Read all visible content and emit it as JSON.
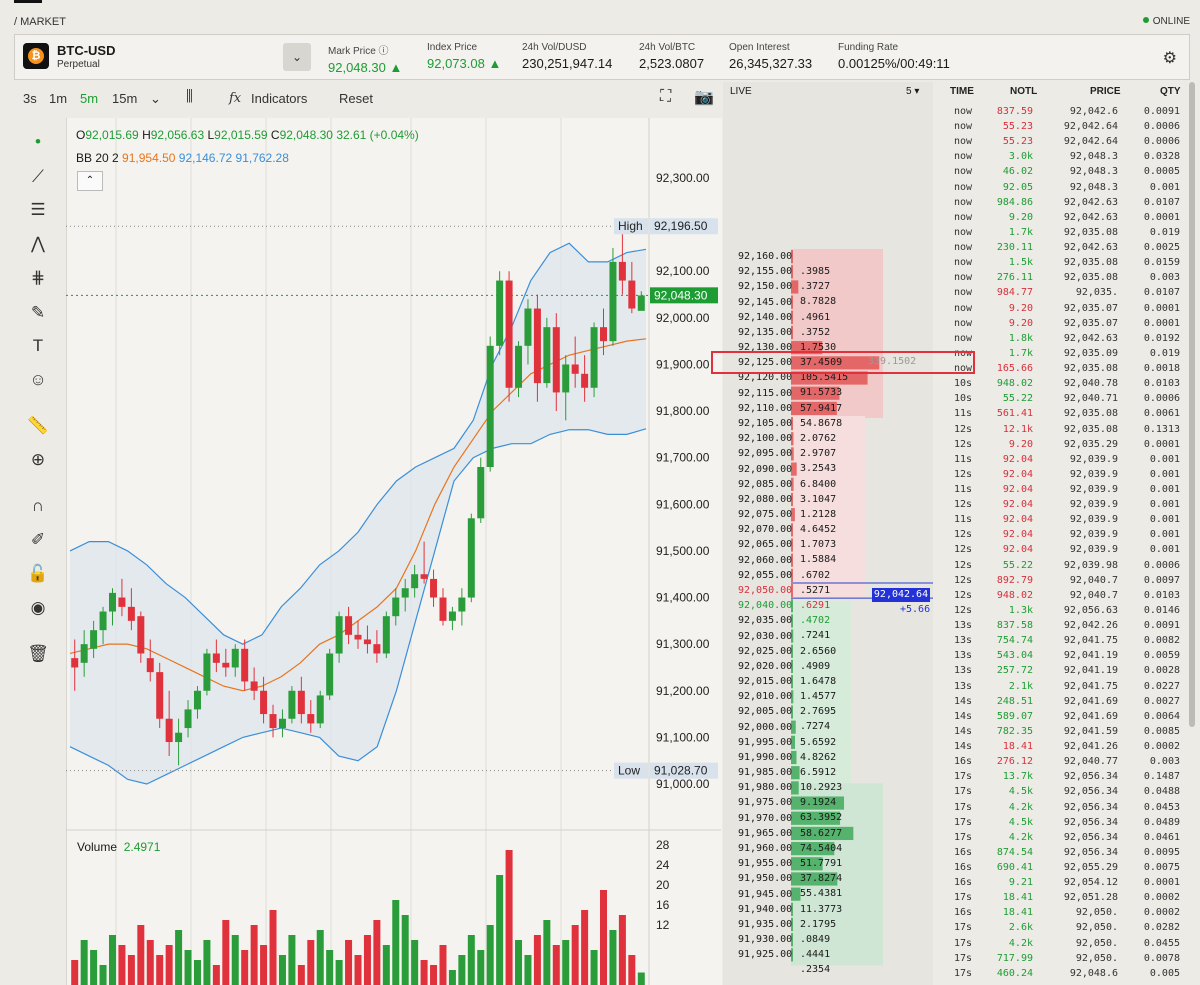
{
  "breadcrumb": "/ MARKET",
  "status": "ONLINE",
  "market": {
    "symbol": "BTC-USD",
    "type": "Perpetual",
    "logo_icon": "bitcoin-icon"
  },
  "stats": [
    {
      "label": "Mark Price ⓘ",
      "value": "92,048.30 ▲",
      "color": "#1e9c34"
    },
    {
      "label": "Index Price",
      "value": "92,073.08 ▲",
      "color": "#1e9c34"
    },
    {
      "label": "24h Vol/DUSD",
      "value": "230,251,947.14",
      "color": "#1a1a1a"
    },
    {
      "label": "24h Vol/BTC",
      "value": "2,523.0807",
      "color": "#1a1a1a"
    },
    {
      "label": "Open Interest",
      "value": "26,345,327.33",
      "color": "#1a1a1a"
    },
    {
      "label": "Funding Rate",
      "value": "0.00125%/00:49:11",
      "color": "#1a1a1a"
    }
  ],
  "toolbar": {
    "intervals": [
      "3s",
      "1m",
      "5m",
      "15m"
    ],
    "active_interval": "5m",
    "indicators": "Indicators",
    "reset": "Reset"
  },
  "chart": {
    "ohlc_o": "92,015.69",
    "ohlc_h": "92,056.63",
    "ohlc_l": "92,015.59",
    "ohlc_c": "92,048.30",
    "ohlc_chg": "32.61 (+0.04%)",
    "bb_label": "BB 20 2",
    "bb_mid": "91,954.50",
    "bb_up": "92,146.72",
    "bb_low": "91,762.28",
    "high_label": "High",
    "high_value": "92,196.50",
    "low_label": "Low",
    "low_value": "91,028.70",
    "current_price": "92,048.30",
    "y_ticks": [
      "92,300.00",
      "92,100.00",
      "92,000.00",
      "91,900.00",
      "91,800.00",
      "91,700.00",
      "91,600.00",
      "91,500.00",
      "91,400.00",
      "91,300.00",
      "91,200.00",
      "91,100.00",
      "91,000.00"
    ],
    "volume_label": "Volume",
    "volume_value": "2.4971",
    "vol_ticks": [
      "28",
      "24",
      "20",
      "16",
      "12"
    ]
  },
  "chart_data": {
    "type": "candlestick",
    "price_ylim": [
      91000,
      92300
    ],
    "candles": [
      [
        91270,
        91310,
        91200,
        91250
      ],
      [
        91260,
        91330,
        91230,
        91300
      ],
      [
        91290,
        91350,
        91270,
        91330
      ],
      [
        91330,
        91380,
        91300,
        91370
      ],
      [
        91370,
        91420,
        91340,
        91410
      ],
      [
        91400,
        91440,
        91360,
        91380
      ],
      [
        91380,
        91420,
        91330,
        91350
      ],
      [
        91360,
        91370,
        91260,
        91280
      ],
      [
        91270,
        91310,
        91220,
        91240
      ],
      [
        91240,
        91260,
        91120,
        91140
      ],
      [
        91140,
        91200,
        91060,
        91090
      ],
      [
        91090,
        91140,
        91040,
        91110
      ],
      [
        91120,
        91180,
        91100,
        91160
      ],
      [
        91160,
        91210,
        91140,
        91200
      ],
      [
        91200,
        91290,
        91190,
        91280
      ],
      [
        91280,
        91310,
        91240,
        91260
      ],
      [
        91260,
        91290,
        91230,
        91250
      ],
      [
        91250,
        91300,
        91230,
        91290
      ],
      [
        91290,
        91310,
        91200,
        91220
      ],
      [
        91220,
        91250,
        91180,
        91200
      ],
      [
        91200,
        91230,
        91130,
        91150
      ],
      [
        91150,
        91170,
        91100,
        91120
      ],
      [
        91120,
        91160,
        91100,
        91140
      ],
      [
        91140,
        91210,
        91130,
        91200
      ],
      [
        91200,
        91230,
        91130,
        91150
      ],
      [
        91150,
        91180,
        91110,
        91130
      ],
      [
        91130,
        91200,
        91120,
        91190
      ],
      [
        91190,
        91290,
        91180,
        91280
      ],
      [
        91280,
        91370,
        91260,
        91360
      ],
      [
        91360,
        91380,
        91300,
        91320
      ],
      [
        91320,
        91350,
        91290,
        91310
      ],
      [
        91310,
        91340,
        91280,
        91300
      ],
      [
        91300,
        91330,
        91260,
        91280
      ],
      [
        91280,
        91370,
        91270,
        91360
      ],
      [
        91360,
        91420,
        91340,
        91400
      ],
      [
        91400,
        91440,
        91370,
        91420
      ],
      [
        91420,
        91470,
        91400,
        91450
      ],
      [
        91450,
        91520,
        91430,
        91440
      ],
      [
        91440,
        91460,
        91380,
        91400
      ],
      [
        91400,
        91420,
        91340,
        91350
      ],
      [
        91350,
        91380,
        91330,
        91370
      ],
      [
        91370,
        91420,
        91340,
        91400
      ],
      [
        91400,
        91580,
        91390,
        91570
      ],
      [
        91570,
        91700,
        91560,
        91680
      ],
      [
        91680,
        91960,
        91670,
        91940
      ],
      [
        91940,
        92100,
        91920,
        92080
      ],
      [
        92080,
        92100,
        91820,
        91850
      ],
      [
        91850,
        91950,
        91830,
        91940
      ],
      [
        91940,
        92040,
        91900,
        92020
      ],
      [
        92020,
        92050,
        91820,
        91860
      ],
      [
        91860,
        92000,
        91850,
        91980
      ],
      [
        91980,
        92010,
        91800,
        91840
      ],
      [
        91840,
        91920,
        91780,
        91900
      ],
      [
        91900,
        91960,
        91850,
        91880
      ],
      [
        91880,
        91920,
        91820,
        91850
      ],
      [
        91850,
        91990,
        91830,
        91980
      ],
      [
        91980,
        92020,
        91920,
        91950
      ],
      [
        91950,
        92150,
        91940,
        92120
      ],
      [
        92120,
        92196,
        92050,
        92080
      ],
      [
        92080,
        92120,
        92010,
        92020
      ],
      [
        92015,
        92057,
        92016,
        92048
      ]
    ],
    "bb_upper": [
      91500,
      91520,
      91520,
      91500,
      91470,
      91430,
      91400,
      91360,
      91320,
      91300,
      91320,
      91380,
      91420,
      91470,
      91500,
      91540,
      91600,
      91650,
      91680,
      91700,
      91720,
      91780,
      91900,
      91980,
      92080,
      92140,
      92160,
      92120,
      92120,
      92140,
      92147
    ],
    "bb_middle": [
      91280,
      91290,
      91300,
      91300,
      91290,
      91270,
      91250,
      91230,
      91210,
      91200,
      91210,
      91230,
      91260,
      91300,
      91320,
      91350,
      91380,
      91420,
      91500,
      91600,
      91680,
      91740,
      91800,
      91840,
      91880,
      91900,
      91920,
      91930,
      91940,
      91950,
      91955
    ],
    "bb_lower": [
      91080,
      91060,
      91040,
      91010,
      91000,
      91020,
      91040,
      91060,
      91080,
      91100,
      91110,
      91120,
      91110,
      91100,
      91060,
      91050,
      91080,
      91200,
      91350,
      91500,
      91650,
      91700,
      91720,
      91730,
      91730,
      91750,
      91760,
      91760,
      91750,
      91750,
      91762
    ],
    "volume": [
      5,
      9,
      7,
      4,
      10,
      8,
      6,
      12,
      9,
      6,
      8,
      11,
      7,
      5,
      9,
      4,
      13,
      10,
      7,
      12,
      8,
      15,
      6,
      10,
      4,
      9,
      11,
      7,
      5,
      9,
      6,
      10,
      13,
      8,
      17,
      14,
      9,
      5,
      4,
      8,
      3,
      6,
      10,
      7,
      12,
      22,
      27,
      9,
      6,
      10,
      13,
      8,
      9,
      12,
      15,
      7,
      19,
      11,
      14,
      6,
      2.4971
    ],
    "volume_ylim": [
      0,
      28
    ]
  },
  "orderbook": {
    "header": "LIVE",
    "depth": "5 ▾",
    "asks": [
      [
        "92,160.00",
        ".3985"
      ],
      [
        "92,155.00",
        ".3727"
      ],
      [
        "92,150.00",
        "8.7828"
      ],
      [
        "92,145.00",
        ".4961"
      ],
      [
        "92,140.00",
        ".3752"
      ],
      [
        "92,135.00",
        "1.7530"
      ],
      [
        "92,130.00",
        "37.4509"
      ],
      [
        "92,125.00",
        "105.5415"
      ],
      [
        "92,120.00",
        "91.5733"
      ],
      [
        "92,115.00",
        "57.9417"
      ],
      [
        "92,110.00",
        "54.8678"
      ],
      [
        "92,105.00",
        "2.0762"
      ],
      [
        "92,100.00",
        "2.9707"
      ],
      [
        "92,095.00",
        "3.2543"
      ],
      [
        "92,090.00",
        "6.8400"
      ],
      [
        "92,085.00",
        "3.1047"
      ],
      [
        "92,080.00",
        "1.2128"
      ],
      [
        "92,075.00",
        "4.6452"
      ],
      [
        "92,070.00",
        "1.7073"
      ],
      [
        "92,065.00",
        "1.5884"
      ],
      [
        "92,060.00",
        ".6702"
      ],
      [
        "92,055.00",
        ".5271"
      ],
      [
        "92,050.00",
        ".6291"
      ]
    ],
    "ask_depth": "339.1502",
    "bids": [
      [
        "92,040.00",
        ".4702"
      ],
      [
        "92,035.00",
        ".7241"
      ],
      [
        "92,030.00",
        "2.6560"
      ],
      [
        "92,025.00",
        ".4909"
      ],
      [
        "92,020.00",
        "1.6478"
      ],
      [
        "92,015.00",
        "1.4577"
      ],
      [
        "92,010.00",
        "2.7695"
      ],
      [
        "92,005.00",
        ".7274"
      ],
      [
        "92,000.00",
        "5.6592"
      ],
      [
        "91,995.00",
        "4.8262"
      ],
      [
        "91,990.00",
        "6.5912"
      ],
      [
        "91,985.00",
        "10.2923"
      ],
      [
        "91,980.00",
        "9.1924"
      ],
      [
        "91,975.00",
        "63.3952"
      ],
      [
        "91,970.00",
        "58.6277"
      ],
      [
        "91,965.00",
        "74.5404"
      ],
      [
        "91,960.00",
        "51.7791"
      ],
      [
        "91,955.00",
        "37.8274"
      ],
      [
        "91,950.00",
        "55.4381"
      ],
      [
        "91,945.00",
        "11.3773"
      ],
      [
        "91,940.00",
        "2.1795"
      ],
      [
        "91,935.00",
        ".0849"
      ],
      [
        "91,930.00",
        ".4441"
      ],
      [
        "91,925.00",
        ".2354"
      ]
    ],
    "last_price": "92,042.64",
    "last_change": "+5.66"
  },
  "trades": {
    "headers": [
      "TIME",
      "NOTL",
      "PRICE",
      "QTY"
    ],
    "rows": [
      [
        "now",
        "837.59",
        "92,042.6",
        "0.0091",
        "r"
      ],
      [
        "now",
        "55.23",
        "92,042.64",
        "0.0006",
        "r"
      ],
      [
        "now",
        "55.23",
        "92,042.64",
        "0.0006",
        "r"
      ],
      [
        "now",
        "3.0k",
        "92,048.3",
        "0.0328",
        "g"
      ],
      [
        "now",
        "46.02",
        "92,048.3",
        "0.0005",
        "g"
      ],
      [
        "now",
        "92.05",
        "92,048.3",
        "0.001",
        "g"
      ],
      [
        "now",
        "984.86",
        "92,042.63",
        "0.0107",
        "g"
      ],
      [
        "now",
        "9.20",
        "92,042.63",
        "0.0001",
        "g"
      ],
      [
        "now",
        "1.7k",
        "92,035.08",
        "0.019",
        "g"
      ],
      [
        "now",
        "230.11",
        "92,042.63",
        "0.0025",
        "g"
      ],
      [
        "now",
        "1.5k",
        "92,035.08",
        "0.0159",
        "g"
      ],
      [
        "now",
        "276.11",
        "92,035.08",
        "0.003",
        "g"
      ],
      [
        "now",
        "984.77",
        "92,035.",
        "0.0107",
        "r"
      ],
      [
        "now",
        "9.20",
        "92,035.07",
        "0.0001",
        "r"
      ],
      [
        "now",
        "9.20",
        "92,035.07",
        "0.0001",
        "r"
      ],
      [
        "now",
        "1.8k",
        "92,042.63",
        "0.0192",
        "g"
      ],
      [
        "now",
        "1.7k",
        "92,035.09",
        "0.019",
        "g"
      ],
      [
        "now",
        "165.66",
        "92,035.08",
        "0.0018",
        "r"
      ],
      [
        "10s",
        "948.02",
        "92,040.78",
        "0.0103",
        "g"
      ],
      [
        "10s",
        "55.22",
        "92,040.71",
        "0.0006",
        "g"
      ],
      [
        "11s",
        "561.41",
        "92,035.08",
        "0.0061",
        "r"
      ],
      [
        "12s",
        "12.1k",
        "92,035.08",
        "0.1313",
        "r"
      ],
      [
        "12s",
        "9.20",
        "92,035.29",
        "0.0001",
        "r"
      ],
      [
        "11s",
        "92.04",
        "92,039.9",
        "0.001",
        "r"
      ],
      [
        "12s",
        "92.04",
        "92,039.9",
        "0.001",
        "r"
      ],
      [
        "11s",
        "92.04",
        "92,039.9",
        "0.001",
        "r"
      ],
      [
        "12s",
        "92.04",
        "92,039.9",
        "0.001",
        "r"
      ],
      [
        "11s",
        "92.04",
        "92,039.9",
        "0.001",
        "r"
      ],
      [
        "12s",
        "92.04",
        "92,039.9",
        "0.001",
        "r"
      ],
      [
        "12s",
        "92.04",
        "92,039.9",
        "0.001",
        "r"
      ],
      [
        "12s",
        "55.22",
        "92,039.98",
        "0.0006",
        "g"
      ],
      [
        "12s",
        "892.79",
        "92,040.7",
        "0.0097",
        "r"
      ],
      [
        "12s",
        "948.02",
        "92,040.7",
        "0.0103",
        "r"
      ],
      [
        "12s",
        "1.3k",
        "92,056.63",
        "0.0146",
        "g"
      ],
      [
        "13s",
        "837.58",
        "92,042.26",
        "0.0091",
        "g"
      ],
      [
        "13s",
        "754.74",
        "92,041.75",
        "0.0082",
        "g"
      ],
      [
        "13s",
        "543.04",
        "92,041.19",
        "0.0059",
        "g"
      ],
      [
        "13s",
        "257.72",
        "92,041.19",
        "0.0028",
        "g"
      ],
      [
        "13s",
        "2.1k",
        "92,041.75",
        "0.0227",
        "g"
      ],
      [
        "14s",
        "248.51",
        "92,041.69",
        "0.0027",
        "g"
      ],
      [
        "14s",
        "589.07",
        "92,041.69",
        "0.0064",
        "g"
      ],
      [
        "14s",
        "782.35",
        "92,041.59",
        "0.0085",
        "g"
      ],
      [
        "14s",
        "18.41",
        "92,041.26",
        "0.0002",
        "r"
      ],
      [
        "16s",
        "276.12",
        "92,040.77",
        "0.003",
        "r"
      ],
      [
        "17s",
        "13.7k",
        "92,056.34",
        "0.1487",
        "g"
      ],
      [
        "17s",
        "4.5k",
        "92,056.34",
        "0.0488",
        "g"
      ],
      [
        "17s",
        "4.2k",
        "92,056.34",
        "0.0453",
        "g"
      ],
      [
        "17s",
        "4.5k",
        "92,056.34",
        "0.0489",
        "g"
      ],
      [
        "17s",
        "4.2k",
        "92,056.34",
        "0.0461",
        "g"
      ],
      [
        "16s",
        "874.54",
        "92,056.34",
        "0.0095",
        "g"
      ],
      [
        "16s",
        "690.41",
        "92,055.29",
        "0.0075",
        "g"
      ],
      [
        "16s",
        "9.21",
        "92,054.12",
        "0.0001",
        "g"
      ],
      [
        "17s",
        "18.41",
        "92,051.28",
        "0.0002",
        "g"
      ],
      [
        "16s",
        "18.41",
        "92,050.",
        "0.0002",
        "g"
      ],
      [
        "17s",
        "2.6k",
        "92,050.",
        "0.0282",
        "g"
      ],
      [
        "17s",
        "4.2k",
        "92,050.",
        "0.0455",
        "g"
      ],
      [
        "17s",
        "717.99",
        "92,050.",
        "0.0078",
        "g"
      ],
      [
        "17s",
        "460.24",
        "92,048.6",
        "0.005",
        "g"
      ]
    ]
  }
}
